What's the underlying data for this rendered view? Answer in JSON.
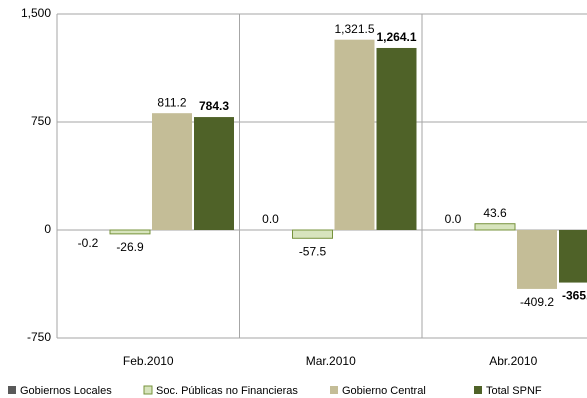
{
  "chart_data": {
    "type": "bar",
    "categories": [
      "Feb.2010",
      "Mar.2010",
      "Abr.2010"
    ],
    "series": [
      {
        "name": "Gobiernos Locales",
        "color": "#595959",
        "values": [
          -0.2,
          0,
          0
        ],
        "value_labels": [
          "-0.2",
          "0.0",
          "0.0"
        ]
      },
      {
        "name": "Soc. Públicas no Financieras",
        "color": "#d7e4bd",
        "values": [
          -26.9,
          -57.5,
          43.6
        ]
      },
      {
        "name": "Gobierno Central",
        "color": "#c4bd97",
        "values": [
          811.2,
          1321.5,
          -409.2
        ],
        "value_labels": [
          "811.2",
          "1,321.5",
          "-409.2"
        ]
      },
      {
        "name": "Total SPNF",
        "color": "#4f6228",
        "values": [
          784.3,
          1264.1,
          -365.0
        ],
        "value_labels": [
          "784.3",
          "1,264.1",
          "-365.0"
        ]
      }
    ],
    "ylim": [
      -750,
      1500
    ],
    "yticks": [
      -750,
      0,
      750,
      {
        "value": 1500,
        "label": "1,500"
      }
    ],
    "grid": true,
    "legend": "bottom"
  }
}
